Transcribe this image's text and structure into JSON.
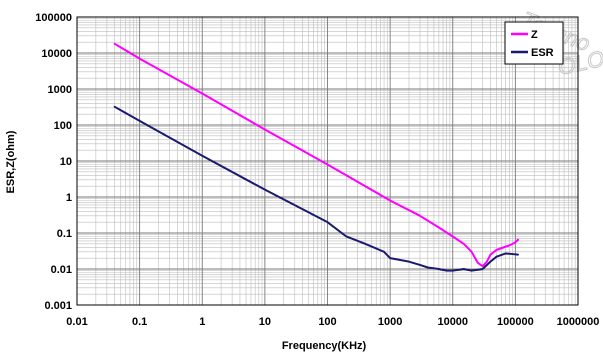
{
  "watermark": {
    "top": "Techno",
    "right": "OLO"
  },
  "chart_data": {
    "type": "line",
    "title": "",
    "xlabel": "Frequency(KHz)",
    "ylabel": "ESR,Z(ohm)",
    "xscale": "log",
    "yscale": "log",
    "xlim": [
      0.01,
      1000000
    ],
    "ylim": [
      0.001,
      100000
    ],
    "grid": true,
    "legend_position": "top-right",
    "x_tick_labels": [
      "0.01",
      "0.1",
      "1",
      "10",
      "100",
      "1000",
      "10000",
      "100000",
      "1000000"
    ],
    "y_tick_labels": [
      "0.001",
      "0.01",
      "0.1",
      "1",
      "10",
      "100",
      "1000",
      "10000",
      "100000"
    ],
    "series": [
      {
        "name": "Z",
        "color": "#ff00ff",
        "points": [
          [
            0.04,
            18000
          ],
          [
            0.1,
            7000
          ],
          [
            1,
            750
          ],
          [
            10,
            75
          ],
          [
            100,
            8
          ],
          [
            1000,
            0.8
          ],
          [
            3000,
            0.3
          ],
          [
            7000,
            0.12
          ],
          [
            10000,
            0.08
          ],
          [
            15000,
            0.05
          ],
          [
            20000,
            0.03
          ],
          [
            25000,
            0.015
          ],
          [
            30000,
            0.012
          ],
          [
            35000,
            0.016
          ],
          [
            40000,
            0.025
          ],
          [
            50000,
            0.034
          ],
          [
            60000,
            0.038
          ],
          [
            80000,
            0.045
          ],
          [
            100000,
            0.055
          ],
          [
            110000,
            0.065
          ]
        ]
      },
      {
        "name": "ESR",
        "color": "#1a1a6e",
        "points": [
          [
            0.04,
            320
          ],
          [
            0.1,
            130
          ],
          [
            1,
            14
          ],
          [
            10,
            1.6
          ],
          [
            100,
            0.2
          ],
          [
            200,
            0.08
          ],
          [
            400,
            0.05
          ],
          [
            800,
            0.03
          ],
          [
            1000,
            0.02
          ],
          [
            2000,
            0.016
          ],
          [
            3000,
            0.013
          ],
          [
            4000,
            0.011
          ],
          [
            6000,
            0.01
          ],
          [
            8000,
            0.009
          ],
          [
            10000,
            0.009
          ],
          [
            15000,
            0.01
          ],
          [
            20000,
            0.009
          ],
          [
            30000,
            0.01
          ],
          [
            40000,
            0.016
          ],
          [
            50000,
            0.022
          ],
          [
            70000,
            0.027
          ],
          [
            90000,
            0.026
          ],
          [
            110000,
            0.025
          ]
        ]
      }
    ]
  }
}
